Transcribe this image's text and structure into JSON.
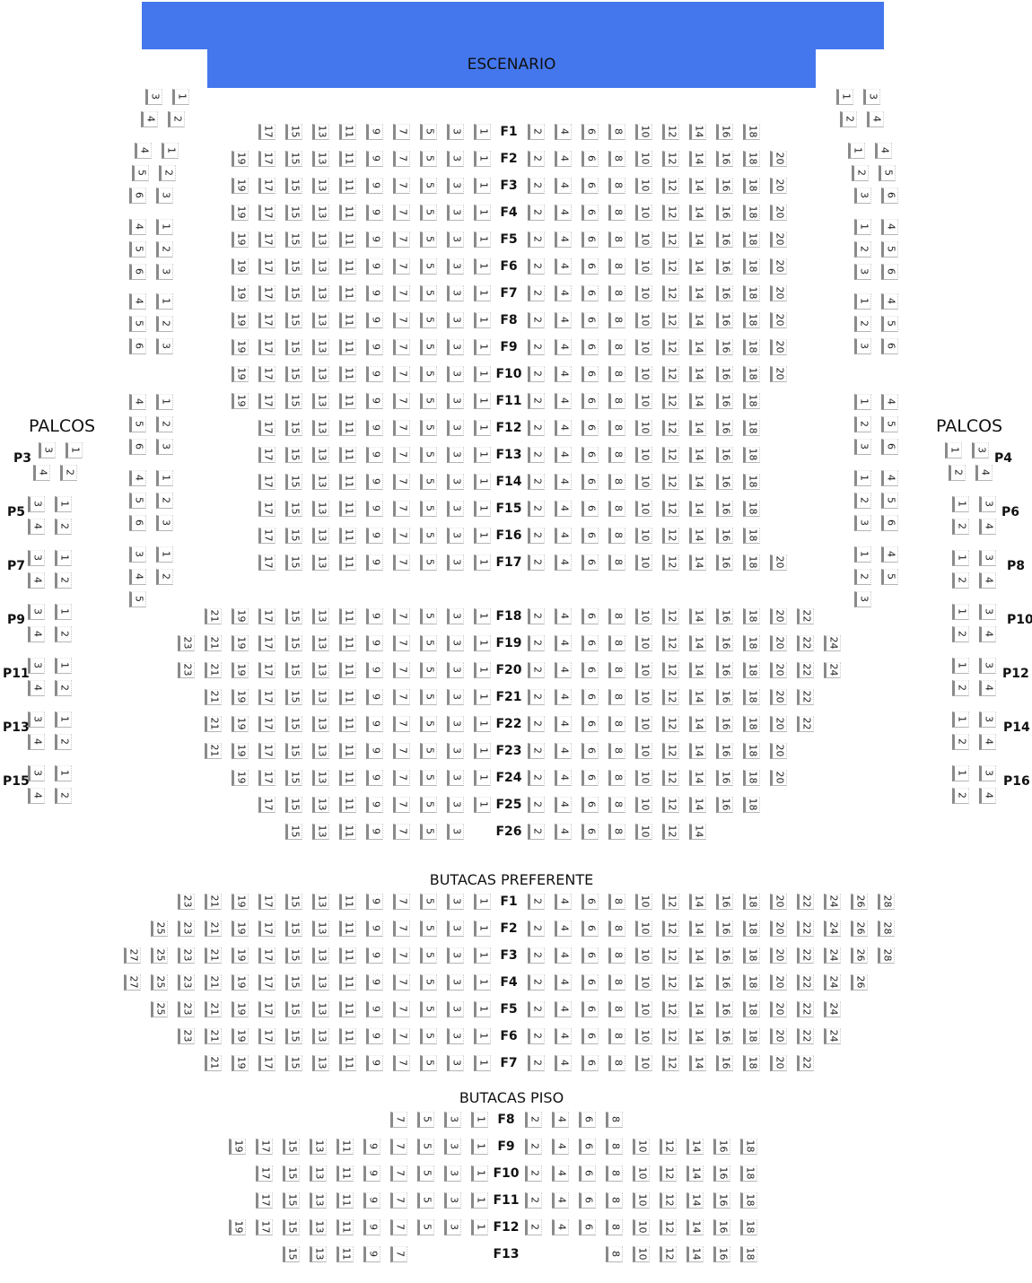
{
  "stage": {
    "label": "ESCENARIO",
    "color": "#4477ee"
  },
  "palcos_title_left": "PALCOS",
  "palcos_title_right": "PALCOS",
  "main_floor": {
    "rows": [
      {
        "label": "F1",
        "left": 17,
        "right": 18
      },
      {
        "label": "F2",
        "left": 19,
        "right": 20
      },
      {
        "label": "F3",
        "left": 19,
        "right": 20
      },
      {
        "label": "F4",
        "left": 19,
        "right": 20
      },
      {
        "label": "F5",
        "left": 19,
        "right": 20
      },
      {
        "label": "F6",
        "left": 19,
        "right": 20
      },
      {
        "label": "F7",
        "left": 19,
        "right": 20
      },
      {
        "label": "F8",
        "left": 19,
        "right": 20
      },
      {
        "label": "F9",
        "left": 19,
        "right": 20
      },
      {
        "label": "F10",
        "left": 19,
        "right": 20
      },
      {
        "label": "F11",
        "left": 19,
        "right": 18
      },
      {
        "label": "F12",
        "left": 17,
        "right": 18
      },
      {
        "label": "F13",
        "left": 17,
        "right": 18
      },
      {
        "label": "F14",
        "left": 17,
        "right": 18
      },
      {
        "label": "F15",
        "left": 17,
        "right": 18
      },
      {
        "label": "F16",
        "left": 17,
        "right": 18
      },
      {
        "label": "F17",
        "left": 17,
        "right": 20
      },
      {
        "label": "F18",
        "left": 21,
        "right": 22
      },
      {
        "label": "F19",
        "left": 23,
        "right": 24
      },
      {
        "label": "F20",
        "left": 23,
        "right": 24
      },
      {
        "label": "F21",
        "left": 21,
        "right": 22
      },
      {
        "label": "F22",
        "left": 21,
        "right": 22
      },
      {
        "label": "F23",
        "left": 21,
        "right": 20
      },
      {
        "label": "F24",
        "left": 19,
        "right": 20
      },
      {
        "label": "F25",
        "left": 17,
        "right": 18
      },
      {
        "label": "F26",
        "left": 15,
        "left_min": 3,
        "right": 14
      }
    ]
  },
  "side_left": [
    [
      [
        "3",
        "1"
      ],
      [
        "4",
        "2"
      ]
    ],
    [
      [
        "4",
        "1"
      ],
      [
        "5",
        "2"
      ],
      [
        "6",
        "3"
      ]
    ],
    [
      [
        "4",
        "1"
      ],
      [
        "5",
        "2"
      ],
      [
        "6",
        "3"
      ]
    ],
    [
      [
        "4",
        "1"
      ],
      [
        "5",
        "2"
      ],
      [
        "6",
        "3"
      ]
    ],
    [
      [
        "4",
        "1"
      ],
      [
        "5",
        "2"
      ],
      [
        "6",
        "3"
      ]
    ],
    [
      [
        "4",
        "1"
      ],
      [
        "5",
        "2"
      ],
      [
        "6",
        "3"
      ]
    ],
    [
      [
        "3",
        "1"
      ],
      [
        "4",
        "2"
      ],
      [
        "5"
      ]
    ]
  ],
  "side_right": [
    [
      [
        "1",
        "3"
      ],
      [
        "2",
        "4"
      ]
    ],
    [
      [
        "1",
        "4"
      ],
      [
        "2",
        "5"
      ],
      [
        "3",
        "6"
      ]
    ],
    [
      [
        "1",
        "4"
      ],
      [
        "2",
        "5"
      ],
      [
        "3",
        "6"
      ]
    ],
    [
      [
        "1",
        "4"
      ],
      [
        "2",
        "5"
      ],
      [
        "3",
        "6"
      ]
    ],
    [
      [
        "1",
        "4"
      ],
      [
        "2",
        "5"
      ],
      [
        "3",
        "6"
      ]
    ],
    [
      [
        "1",
        "4"
      ],
      [
        "2",
        "5"
      ],
      [
        "3",
        "6"
      ]
    ],
    [
      [
        "1",
        "4"
      ],
      [
        "2",
        "5"
      ],
      [
        "3"
      ]
    ]
  ],
  "palcos_left": [
    {
      "label": "P3",
      "seats": [
        [
          "3",
          "1"
        ],
        [
          "4",
          "2"
        ]
      ]
    },
    {
      "label": "P5",
      "seats": [
        [
          "3",
          "1"
        ],
        [
          "4",
          "2"
        ]
      ]
    },
    {
      "label": "P7",
      "seats": [
        [
          "3",
          "1"
        ],
        [
          "4",
          "2"
        ]
      ]
    },
    {
      "label": "P9",
      "seats": [
        [
          "3",
          "1"
        ],
        [
          "4",
          "2"
        ]
      ]
    },
    {
      "label": "P11",
      "seats": [
        [
          "3",
          "1"
        ],
        [
          "4",
          "2"
        ]
      ]
    },
    {
      "label": "P13",
      "seats": [
        [
          "3",
          "1"
        ],
        [
          "4",
          "2"
        ]
      ]
    },
    {
      "label": "P15",
      "seats": [
        [
          "3",
          "1"
        ],
        [
          "4",
          "2"
        ]
      ]
    }
  ],
  "palcos_right": [
    {
      "label": "P4",
      "seats": [
        [
          "1",
          "3"
        ],
        [
          "2",
          "4"
        ]
      ]
    },
    {
      "label": "P6",
      "seats": [
        [
          "1",
          "3"
        ],
        [
          "2",
          "4"
        ]
      ]
    },
    {
      "label": "P8",
      "seats": [
        [
          "1",
          "3"
        ],
        [
          "2",
          "4"
        ]
      ]
    },
    {
      "label": "P10",
      "seats": [
        [
          "1",
          "3"
        ],
        [
          "2",
          "4"
        ]
      ]
    },
    {
      "label": "P12",
      "seats": [
        [
          "1",
          "3"
        ],
        [
          "2",
          "4"
        ]
      ]
    },
    {
      "label": "P14",
      "seats": [
        [
          "1",
          "3"
        ],
        [
          "2",
          "4"
        ]
      ]
    },
    {
      "label": "P16",
      "seats": [
        [
          "1",
          "3"
        ],
        [
          "2",
          "4"
        ]
      ]
    }
  ],
  "preferente": {
    "title": "BUTACAS PREFERENTE",
    "rows": [
      {
        "label": "F1",
        "left": 23,
        "right": 28
      },
      {
        "label": "F2",
        "left": 25,
        "right": 28
      },
      {
        "label": "F3",
        "left": 27,
        "right": 28
      },
      {
        "label": "F4",
        "left": 27,
        "right": 26
      },
      {
        "label": "F5",
        "left": 25,
        "right": 24
      },
      {
        "label": "F6",
        "left": 23,
        "right": 24
      },
      {
        "label": "F7",
        "left": 21,
        "right": 22
      }
    ]
  },
  "piso": {
    "title": "BUTACAS PISO",
    "rows": [
      {
        "label": "F8",
        "left": 7,
        "right": 8
      },
      {
        "label": "F9",
        "left": 19,
        "right": 18
      },
      {
        "label": "F10",
        "left": 17,
        "right": 18
      },
      {
        "label": "F11",
        "left": 17,
        "right": 18
      },
      {
        "label": "F12",
        "left": 19,
        "right": 18
      },
      {
        "label": "F13",
        "left": 15,
        "left_min": 7,
        "right": 18,
        "right_min": 8
      }
    ]
  }
}
